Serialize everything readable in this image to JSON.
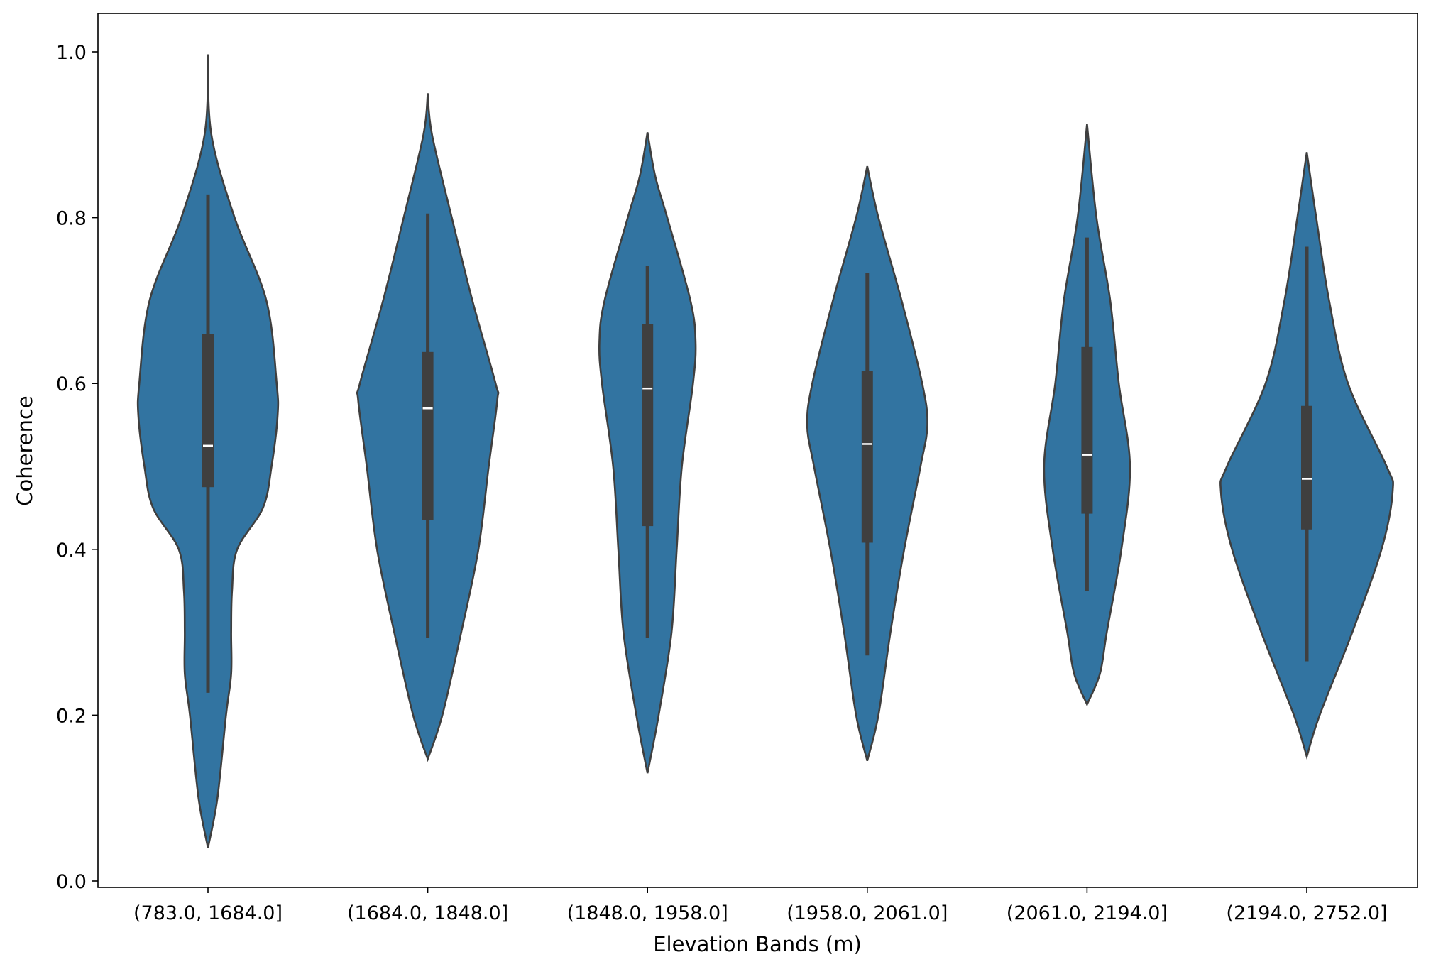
{
  "chart_data": {
    "type": "violin",
    "title": "",
    "xlabel": "Elevation Bands (m)",
    "ylabel": "Coherence",
    "ylim": [
      -0.01,
      1.047
    ],
    "yticks": [
      "0.0",
      "0.2",
      "0.4",
      "0.6",
      "0.8",
      "1.0"
    ],
    "grid": false,
    "colors": {
      "fill": "#3274a1",
      "edge": "#3f3f3f",
      "box": "#3f3f3f",
      "median": "#ffffff"
    },
    "categories": [
      "(783.0, 1684.0]",
      "(1684.0, 1848.0]",
      "(1848.0, 1958.0]",
      "(1958.0, 2061.0]",
      "(2061.0, 2194.0]",
      "(2194.0, 2752.0]"
    ],
    "violins": [
      {
        "min": 0.04,
        "max": 0.997,
        "whisker_low": 0.227,
        "q1": 0.475,
        "median": 0.525,
        "q3": 0.66,
        "whisker_high": 0.828,
        "density": [
          [
            0.997,
            0
          ],
          [
            0.9,
            0.04
          ],
          [
            0.8,
            0.31
          ],
          [
            0.7,
            0.68
          ],
          [
            0.6,
            0.8
          ],
          [
            0.56,
            0.81
          ],
          [
            0.5,
            0.74
          ],
          [
            0.45,
            0.64
          ],
          [
            0.4,
            0.34
          ],
          [
            0.35,
            0.28
          ],
          [
            0.3,
            0.27
          ],
          [
            0.25,
            0.27
          ],
          [
            0.2,
            0.21
          ],
          [
            0.1,
            0.11
          ],
          [
            0.04,
            0
          ]
        ]
      },
      {
        "min": 0.147,
        "max": 0.95,
        "whisker_low": 0.293,
        "q1": 0.435,
        "median": 0.57,
        "q3": 0.638,
        "whisker_high": 0.805,
        "density": [
          [
            0.95,
            0
          ],
          [
            0.9,
            0.05
          ],
          [
            0.8,
            0.28
          ],
          [
            0.7,
            0.52
          ],
          [
            0.6,
            0.79
          ],
          [
            0.58,
            0.81
          ],
          [
            0.5,
            0.71
          ],
          [
            0.4,
            0.59
          ],
          [
            0.3,
            0.39
          ],
          [
            0.2,
            0.17
          ],
          [
            0.147,
            0
          ]
        ]
      },
      {
        "min": 0.13,
        "max": 0.903,
        "whisker_low": 0.293,
        "q1": 0.428,
        "median": 0.594,
        "q3": 0.672,
        "whisker_high": 0.742,
        "density": [
          [
            0.903,
            0
          ],
          [
            0.85,
            0.09
          ],
          [
            0.8,
            0.23
          ],
          [
            0.7,
            0.5
          ],
          [
            0.65,
            0.56
          ],
          [
            0.6,
            0.53
          ],
          [
            0.5,
            0.4
          ],
          [
            0.4,
            0.34
          ],
          [
            0.3,
            0.28
          ],
          [
            0.2,
            0.13
          ],
          [
            0.13,
            0
          ]
        ]
      },
      {
        "min": 0.145,
        "max": 0.862,
        "whisker_low": 0.272,
        "q1": 0.408,
        "median": 0.527,
        "q3": 0.615,
        "whisker_high": 0.733,
        "density": [
          [
            0.862,
            0
          ],
          [
            0.8,
            0.13
          ],
          [
            0.7,
            0.4
          ],
          [
            0.6,
            0.64
          ],
          [
            0.55,
            0.7
          ],
          [
            0.5,
            0.62
          ],
          [
            0.4,
            0.43
          ],
          [
            0.3,
            0.27
          ],
          [
            0.2,
            0.13
          ],
          [
            0.145,
            0
          ]
        ]
      },
      {
        "min": 0.213,
        "max": 0.913,
        "whisker_low": 0.35,
        "q1": 0.443,
        "median": 0.514,
        "q3": 0.644,
        "whisker_high": 0.776,
        "density": [
          [
            0.913,
            0
          ],
          [
            0.8,
            0.11
          ],
          [
            0.7,
            0.27
          ],
          [
            0.6,
            0.37
          ],
          [
            0.5,
            0.5
          ],
          [
            0.4,
            0.4
          ],
          [
            0.3,
            0.23
          ],
          [
            0.25,
            0.15
          ],
          [
            0.213,
            0
          ]
        ]
      },
      {
        "min": 0.15,
        "max": 0.879,
        "whisker_low": 0.265,
        "q1": 0.424,
        "median": 0.485,
        "q3": 0.573,
        "whisker_high": 0.765,
        "density": [
          [
            0.879,
            0
          ],
          [
            0.8,
            0.11
          ],
          [
            0.7,
            0.26
          ],
          [
            0.6,
            0.48
          ],
          [
            0.5,
            0.93
          ],
          [
            0.47,
            1.0
          ],
          [
            0.4,
            0.87
          ],
          [
            0.3,
            0.53
          ],
          [
            0.2,
            0.15
          ],
          [
            0.15,
            0
          ]
        ]
      }
    ]
  }
}
